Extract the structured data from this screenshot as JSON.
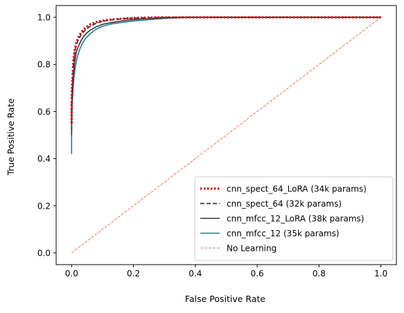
{
  "chart_data": {
    "type": "line",
    "title": "",
    "xlabel": "False Positive Rate",
    "ylabel": "True Positive Rate",
    "xlim": [
      -0.05,
      1.05
    ],
    "ylim": [
      -0.05,
      1.05
    ],
    "xticks": [
      "0.0",
      "0.2",
      "0.4",
      "0.6",
      "0.8",
      "1.0"
    ],
    "yticks": [
      "0.0",
      "0.2",
      "0.4",
      "0.6",
      "0.8",
      "1.0"
    ],
    "grid": false,
    "legend_position": "bottom-right",
    "series": [
      {
        "name": "cnn_spect_64_LoRA (34k params)",
        "color": "#dd0000",
        "style": "dotted",
        "x": [
          0.0,
          0.0,
          0.003,
          0.006,
          0.01,
          0.015,
          0.02,
          0.03,
          0.04,
          0.05,
          0.06,
          0.08,
          0.1,
          0.13,
          0.16,
          0.2,
          0.25,
          0.3,
          0.4,
          0.6,
          0.8,
          1.0
        ],
        "y": [
          0.55,
          0.65,
          0.75,
          0.82,
          0.86,
          0.89,
          0.91,
          0.935,
          0.95,
          0.96,
          0.97,
          0.98,
          0.986,
          0.991,
          0.994,
          0.997,
          0.999,
          1.0,
          1.0,
          1.0,
          1.0,
          1.0
        ]
      },
      {
        "name": "cnn_spect_64 (32k params)",
        "color": "#333333",
        "style": "dashed",
        "x": [
          0.0,
          0.0,
          0.003,
          0.006,
          0.01,
          0.015,
          0.02,
          0.03,
          0.04,
          0.05,
          0.06,
          0.08,
          0.1,
          0.13,
          0.16,
          0.2,
          0.25,
          0.3,
          0.4,
          0.6,
          0.8,
          1.0
        ],
        "y": [
          0.52,
          0.62,
          0.73,
          0.8,
          0.85,
          0.88,
          0.9,
          0.925,
          0.94,
          0.952,
          0.962,
          0.975,
          0.983,
          0.989,
          0.993,
          0.996,
          0.998,
          1.0,
          1.0,
          1.0,
          1.0,
          1.0
        ]
      },
      {
        "name": "cnn_mfcc_12_LoRA (38k params)",
        "color": "#333333",
        "style": "solid",
        "x": [
          0.0,
          0.0,
          0.003,
          0.006,
          0.01,
          0.015,
          0.02,
          0.03,
          0.04,
          0.05,
          0.06,
          0.08,
          0.1,
          0.13,
          0.16,
          0.2,
          0.25,
          0.3,
          0.35,
          0.4,
          0.6,
          0.8,
          1.0
        ],
        "y": [
          0.5,
          0.6,
          0.7,
          0.76,
          0.81,
          0.85,
          0.87,
          0.9,
          0.92,
          0.935,
          0.945,
          0.96,
          0.97,
          0.978,
          0.984,
          0.99,
          0.995,
          0.998,
          1.0,
          1.0,
          1.0,
          1.0,
          1.0
        ]
      },
      {
        "name": "cnn_mfcc_12 (35k params)",
        "color": "#1a7a96",
        "style": "solid",
        "x": [
          0.0,
          0.0,
          0.002,
          0.005,
          0.008,
          0.012,
          0.018,
          0.025,
          0.035,
          0.045,
          0.06,
          0.08,
          0.1,
          0.13,
          0.16,
          0.2,
          0.25,
          0.3,
          0.35,
          0.4,
          0.6,
          0.8,
          1.0
        ],
        "y": [
          0.42,
          0.55,
          0.63,
          0.7,
          0.75,
          0.79,
          0.83,
          0.86,
          0.89,
          0.91,
          0.93,
          0.95,
          0.962,
          0.972,
          0.978,
          0.984,
          0.99,
          0.995,
          0.998,
          1.0,
          1.0,
          1.0,
          1.0
        ]
      },
      {
        "name": "No Learning",
        "color": "#e8735a",
        "style": "dashed-thin",
        "x": [
          0.0,
          1.0
        ],
        "y": [
          0.0,
          1.0
        ]
      }
    ]
  }
}
